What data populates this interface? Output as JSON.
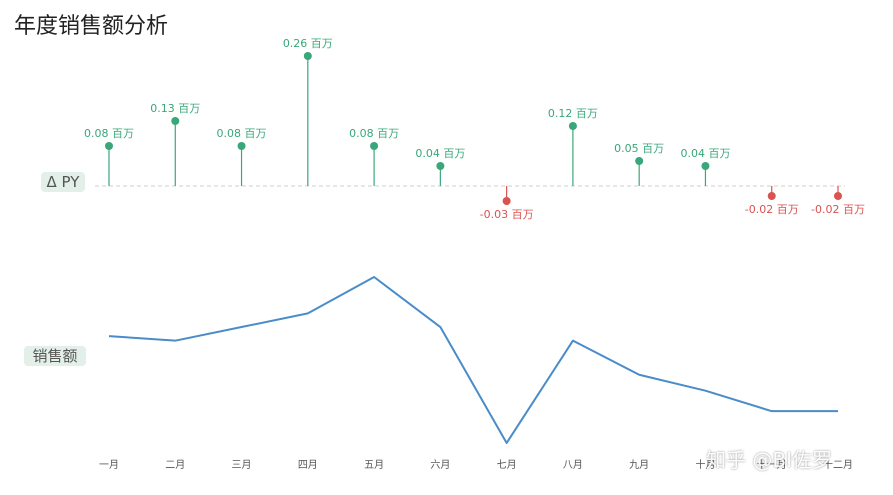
{
  "title": "年度销售额分析",
  "watermark": "知乎 @BI佐罗",
  "chart_data": {
    "type": "line",
    "categories": [
      "一月",
      "二月",
      "三月",
      "四月",
      "五月",
      "六月",
      "七月",
      "八月",
      "九月",
      "十月",
      "十一月",
      "十二月"
    ],
    "delta_series": {
      "name": "Δ PY",
      "values": [
        0.08,
        0.13,
        0.08,
        0.26,
        0.08,
        0.04,
        -0.03,
        0.12,
        0.05,
        0.04,
        -0.02,
        -0.02
      ],
      "labels": [
        "0.08 百万",
        "0.13 百万",
        "0.08 百万",
        "0.26 百万",
        "0.08 百万",
        "0.04 百万",
        "-0.03 百万",
        "0.12 百万",
        "0.05 百万",
        "0.04 百万",
        "-0.02 百万",
        "-0.02 百万"
      ],
      "positive_color": "#3aa77a",
      "negative_color": "#d9534f"
    },
    "sales_series": {
      "name": "销售额",
      "values": [
        0.59,
        0.57,
        0.63,
        0.69,
        0.85,
        0.63,
        0.12,
        0.57,
        0.42,
        0.35,
        0.26,
        0.26
      ],
      "color": "#4a8cc9"
    },
    "grid": false
  }
}
